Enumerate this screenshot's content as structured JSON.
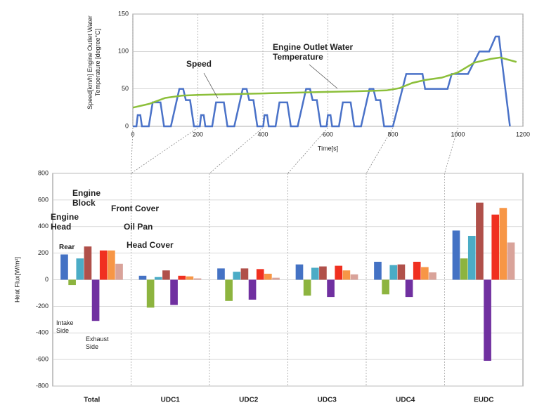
{
  "chart_data": [
    {
      "type": "line",
      "ylabel": "Speed[km/h] Engine Outlet Water Temperature [degree°C]",
      "xlabel": "Time[s]",
      "xlim": [
        0,
        1200
      ],
      "xticks": [
        0,
        200,
        400,
        600,
        800,
        1000,
        1200
      ],
      "ylim": [
        0,
        150
      ],
      "yticks": [
        0,
        50,
        100,
        150
      ],
      "grid": true,
      "series": [
        {
          "name": "Speed",
          "color": "#4a72c8",
          "x": [
            0,
            11,
            15,
            23,
            28,
            49,
            61,
            85,
            96,
            117,
            143,
            155,
            163,
            176,
            188,
            206,
            210,
            218,
            223,
            244,
            256,
            280,
            291,
            312,
            338,
            350,
            358,
            371,
            383,
            401,
            405,
            413,
            418,
            439,
            451,
            475,
            486,
            507,
            533,
            545,
            553,
            566,
            578,
            596,
            600,
            608,
            613,
            634,
            646,
            670,
            681,
            702,
            728,
            740,
            748,
            761,
            773,
            800,
            841,
            891,
            899,
            968,
            981,
            1031,
            1066,
            1096,
            1116,
            1126,
            1160
          ],
          "values": [
            0,
            0,
            15,
            15,
            0,
            0,
            32,
            32,
            0,
            0,
            50,
            50,
            35,
            35,
            0,
            0,
            15,
            15,
            0,
            0,
            32,
            32,
            0,
            0,
            50,
            50,
            35,
            35,
            0,
            0,
            15,
            15,
            0,
            0,
            32,
            32,
            0,
            0,
            50,
            50,
            35,
            35,
            0,
            0,
            15,
            15,
            0,
            0,
            32,
            32,
            0,
            0,
            50,
            50,
            35,
            35,
            0,
            0,
            70,
            70,
            50,
            50,
            70,
            70,
            100,
            100,
            120,
            120,
            0
          ]
        },
        {
          "name": "Engine Outlet Water Temperature",
          "color": "#8cbf3a",
          "x": [
            0,
            50,
            100,
            150,
            200,
            300,
            400,
            500,
            600,
            700,
            780,
            820,
            860,
            900,
            950,
            1000,
            1050,
            1100,
            1130,
            1180
          ],
          "values": [
            25,
            30,
            38,
            41,
            42,
            43,
            44,
            45,
            46,
            47,
            48,
            51,
            58,
            62,
            65,
            72,
            85,
            90,
            92,
            86
          ]
        }
      ]
    },
    {
      "type": "bar",
      "ylabel": "Heat Flux[W/m²]",
      "ylim": [
        -800,
        800
      ],
      "yticks": [
        -800,
        -600,
        -400,
        -200,
        0,
        200,
        400,
        600,
        800
      ],
      "grid": true,
      "categories": [
        "Total",
        "UDC1",
        "UDC2",
        "UDC3",
        "UDC4",
        "EUDC"
      ],
      "annotations": [
        "Engine Head",
        "Engine Block",
        "Front Cover",
        "Oil Pan",
        "Head Cover",
        "Rear",
        "Intake Side",
        "Exhaust Side"
      ],
      "series": [
        {
          "color": "#4472c4",
          "values": [
            190,
            30,
            85,
            115,
            135,
            370
          ]
        },
        {
          "color": "#8db43f",
          "values": [
            -40,
            -210,
            -160,
            -120,
            -110,
            160
          ]
        },
        {
          "color": "#4bacc6",
          "values": [
            160,
            20,
            60,
            90,
            110,
            330
          ]
        },
        {
          "color": "#b0504a",
          "values": [
            250,
            70,
            85,
            100,
            115,
            580
          ]
        },
        {
          "color": "#7030a0",
          "values": [
            -310,
            -190,
            -150,
            -130,
            -130,
            -610
          ]
        },
        {
          "color": "#f03020",
          "values": [
            220,
            30,
            80,
            105,
            135,
            490
          ]
        },
        {
          "color": "#f79646",
          "values": [
            220,
            25,
            45,
            70,
            95,
            540
          ]
        },
        {
          "color": "#d9a39a",
          "values": [
            120,
            10,
            15,
            40,
            55,
            280
          ]
        }
      ]
    }
  ]
}
